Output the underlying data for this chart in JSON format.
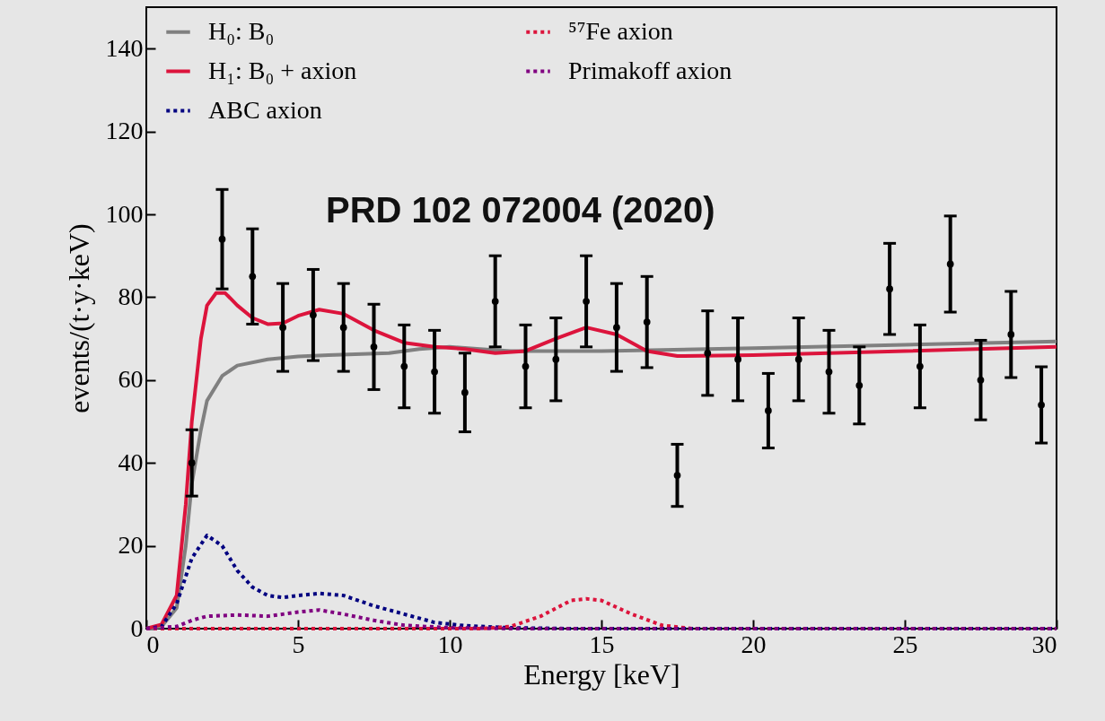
{
  "chart_data": {
    "type": "line",
    "xlabel": "Energy [keV]",
    "ylabel": "events/(t·y·keV)",
    "annotations": [
      "PRD 102 072004 (2020)"
    ],
    "xlim": [
      0,
      30
    ],
    "xticks": [
      0,
      5,
      10,
      15,
      20,
      25,
      30
    ],
    "ylim": [
      0,
      150
    ],
    "yticks": [
      0,
      20,
      40,
      60,
      80,
      100,
      120,
      140
    ],
    "grid": false,
    "legend": "top",
    "series": [
      {
        "name": "H₀: B₀",
        "color": "#808080",
        "line_style": "solid",
        "x": [
          0,
          0.5,
          1,
          1.3,
          1.5,
          1.8,
          2,
          2.5,
          3,
          4,
          5,
          6,
          8,
          9,
          10,
          11,
          12,
          15,
          20,
          25,
          30
        ],
        "values": [
          0,
          0.5,
          5,
          20,
          35,
          48,
          55,
          61,
          63.5,
          65,
          65.7,
          66,
          66.5,
          67.5,
          68,
          67.5,
          67,
          67,
          67.7,
          68.5,
          69.3
        ]
      },
      {
        "name": "H₁: B₀ + axion",
        "color": "#dc143c",
        "line_style": "solid",
        "x": [
          0,
          0.5,
          1,
          1.3,
          1.5,
          1.8,
          2,
          2.3,
          2.6,
          3,
          3.5,
          4,
          4.5,
          5,
          5.7,
          6.5,
          7.5,
          8.5,
          9.5,
          10.5,
          11.5,
          12.5,
          13.5,
          14.5,
          15.5,
          16.5,
          17.5,
          20,
          25,
          30
        ],
        "values": [
          0,
          1,
          8,
          30,
          50,
          70,
          78,
          81,
          81,
          78,
          75,
          73.5,
          73.7,
          75.5,
          77,
          76,
          72,
          69,
          68,
          67.5,
          66.5,
          67,
          70,
          72.7,
          71,
          67,
          65.8,
          66,
          67,
          68
        ]
      },
      {
        "name": "ABC axion",
        "color": "#000080",
        "line_style": "dotted",
        "x": [
          0,
          0.5,
          1,
          1.5,
          2,
          2.5,
          3,
          3.5,
          4,
          4.5,
          5,
          5.7,
          6.5,
          7.5,
          8.5,
          9.5,
          10.5,
          12,
          14,
          30
        ],
        "values": [
          0,
          0.5,
          6,
          17,
          22.5,
          20,
          14,
          10,
          8,
          7.5,
          8,
          8.5,
          8,
          5.5,
          3.5,
          1.5,
          0.7,
          0.2,
          0,
          0
        ]
      },
      {
        "name": "⁵⁷Fe axion",
        "color": "#dc143c",
        "line_style": "dotted",
        "x": [
          0,
          11,
          12,
          13,
          14,
          14.5,
          15,
          16,
          17,
          18,
          30
        ],
        "values": [
          0,
          0,
          0.5,
          3,
          6.8,
          7.2,
          6.8,
          3.5,
          0.8,
          0,
          0
        ]
      },
      {
        "name": "Primakoff axion",
        "color": "#800080",
        "line_style": "dotted",
        "x": [
          0,
          1,
          1.5,
          2,
          3,
          4,
          5,
          5.7,
          6.5,
          7.5,
          8.5,
          10,
          12,
          30
        ],
        "values": [
          0,
          0.5,
          2,
          3,
          3.3,
          3,
          4,
          4.5,
          3.5,
          2,
          0.8,
          0.2,
          0,
          0
        ]
      },
      {
        "type": "scatter",
        "color": "#000000",
        "marker": "circle",
        "x": [
          1.5,
          2.5,
          3.5,
          4.5,
          5.5,
          6.5,
          7.5,
          8.5,
          9.5,
          10.5,
          11.5,
          12.5,
          13.5,
          14.5,
          15.5,
          16.5,
          17.5,
          18.5,
          19.5,
          20.5,
          21.5,
          22.5,
          23.5,
          24.5,
          25.5,
          26.5,
          27.5,
          28.5,
          29.5
        ],
        "values": [
          40,
          94,
          85,
          72.7,
          75.7,
          72.7,
          68,
          63.3,
          62,
          57,
          79,
          63.3,
          65,
          79,
          72.7,
          74,
          37,
          66.5,
          65,
          52.6,
          65,
          62,
          58.7,
          82,
          63.3,
          88,
          60,
          71,
          54
        ],
        "errors": [
          8,
          12,
          11.5,
          10.6,
          11,
          10.6,
          10.3,
          10,
          10,
          9.5,
          11,
          10,
          10,
          11,
          10.6,
          11,
          7.5,
          10.2,
          10,
          9,
          10,
          10,
          9.3,
          11,
          10,
          11.6,
          9.6,
          10.4,
          9.2
        ]
      }
    ]
  }
}
